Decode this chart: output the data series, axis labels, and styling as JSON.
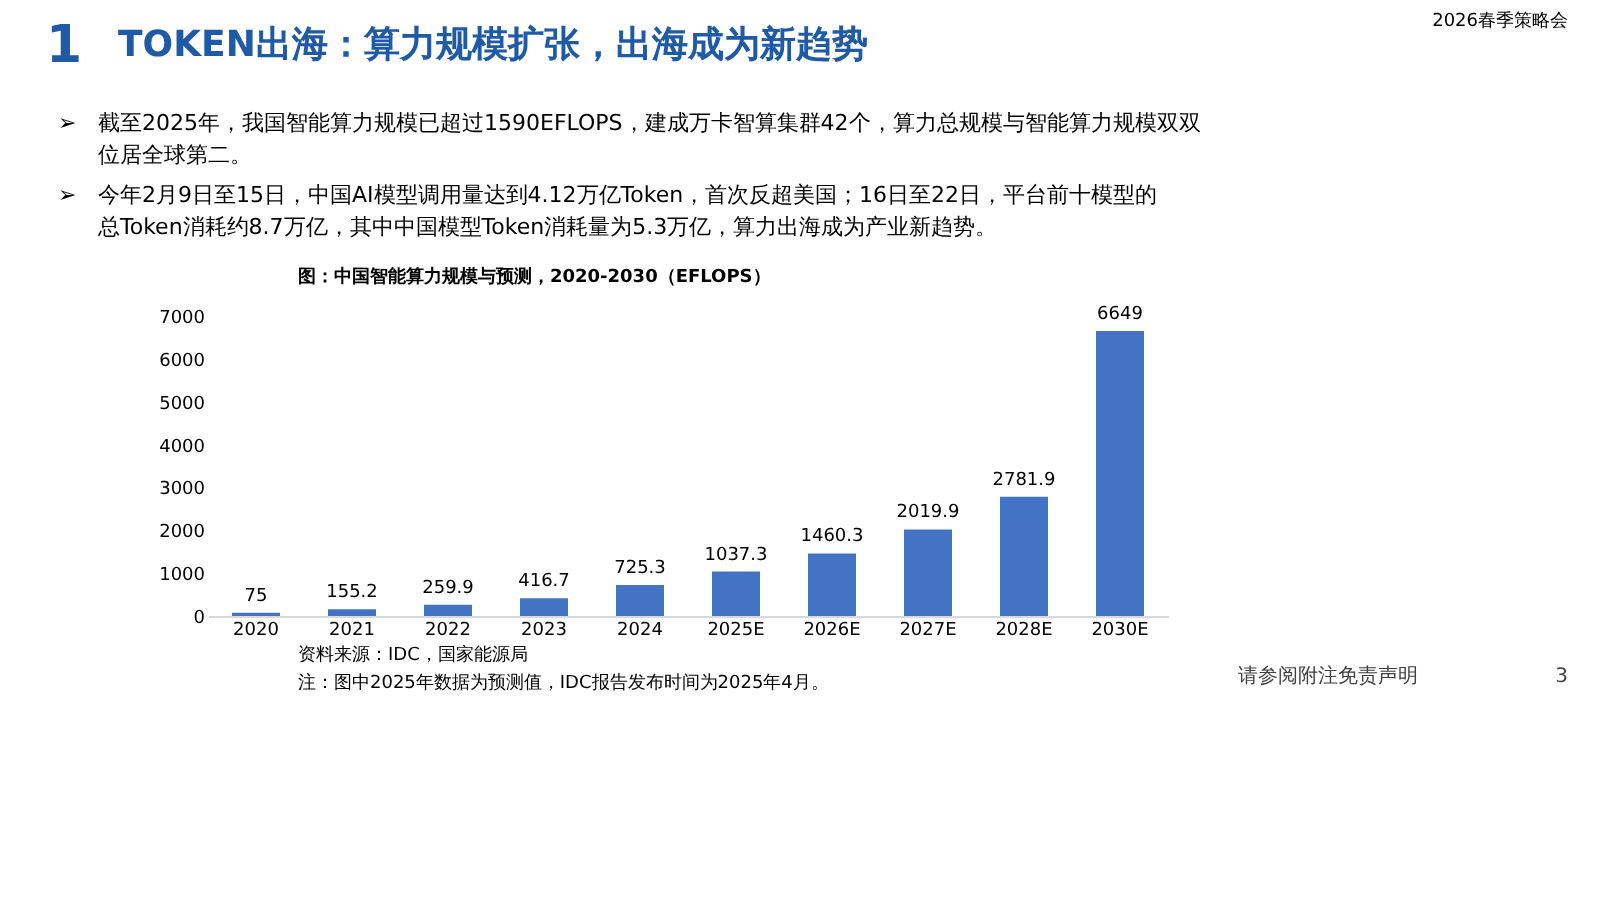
{
  "chart_data": {
    "type": "bar",
    "title": "TOKEN出海：算力规模扩张，出海成为新趋势",
    "subtitle": "图：中国智能算力规模与预测，2020-2030（EFLOPS）",
    "categories": [
      "2020",
      "2021",
      "2022",
      "2023",
      "2024",
      "2025E",
      "2026E",
      "2027E",
      "2028E",
      "2030E"
    ],
    "values": [
      75,
      155.2,
      259.9,
      416.7,
      725.3,
      1037.3,
      1460.3,
      2019.9,
      2781.9,
      6649
    ],
    "color": "#4472c4",
    "data_labels": true,
    "grid": false,
    "ylim": [
      0,
      7000
    ],
    "yticks": [
      0,
      1000,
      2000,
      3000,
      4000,
      5000,
      6000,
      7000
    ],
    "annotations": [
      "1",
      "2026春季策略会",
      "截至2025年，我国智能算力规模已超过1590EFLOPS，建成万卡智算集群42个，算力总规模与智能算力规模双双位居全球第二。",
      "今年2月9日至15日，中国AI模型调用量达到4.12万亿Token，首次反超美国；16日至22日，平台前十模型的总Token消耗约8.7万亿，其中中国模型Token消耗量为5.3万亿，算力出海成为产业新趋势。",
      "资料来源：IDC，国家能源局",
      "注：图中2025年数据为预测值，IDC报告发布时间为2025年4月。",
      "请参阅附注免责声明",
      "3",
      "➢",
      "➢"
    ]
  }
}
